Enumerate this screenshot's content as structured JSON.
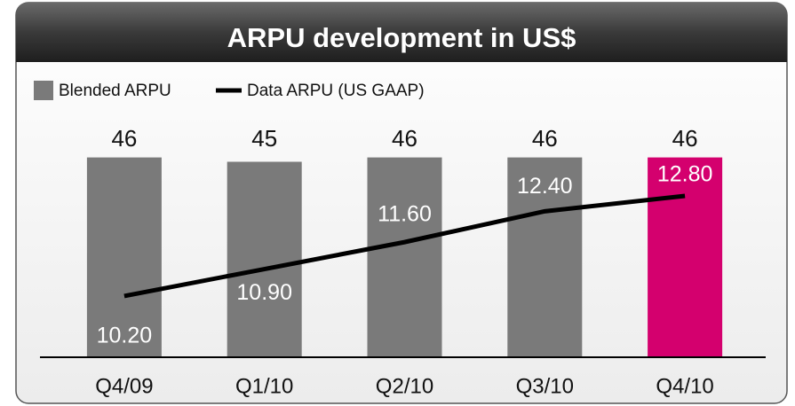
{
  "chart_data": {
    "type": "bar-line",
    "title": "ARPU development in US$",
    "categories": [
      "Q4/09",
      "Q1/10",
      "Q2/10",
      "Q3/10",
      "Q4/10"
    ],
    "series": [
      {
        "name": "Blended ARPU",
        "type": "bar",
        "color": "#7a7a7a",
        "colors": [
          "#7a7a7a",
          "#7a7a7a",
          "#7a7a7a",
          "#7a7a7a",
          "#d4006e"
        ],
        "values": [
          46,
          45,
          46,
          46,
          46
        ]
      },
      {
        "name": "Data ARPU (US GAAP)",
        "type": "line",
        "axis": "y2",
        "color": "#000000",
        "values": [
          10.2,
          10.9,
          11.6,
          12.4,
          12.8
        ],
        "value_labels": [
          "10.20",
          "10.90",
          "11.60",
          "12.40",
          "12.80"
        ]
      }
    ],
    "ylim": [
      0,
      50
    ],
    "y2lim": [
      8.61,
      14.25
    ]
  }
}
